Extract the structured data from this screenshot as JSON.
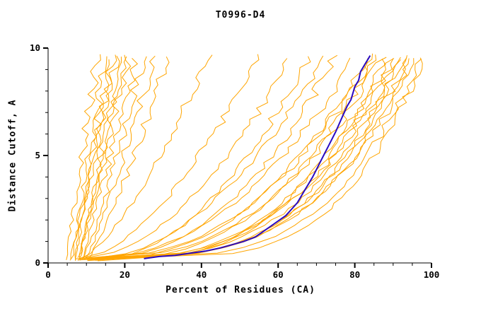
{
  "title": "T0996-D4",
  "colors": {
    "model": "#FFA500",
    "highlight": "#2A0AC0",
    "axis": "#000000",
    "background": "#FFFFFF"
  },
  "chart_data": {
    "type": "line",
    "title": "T0996-D4",
    "xlabel": "Percent of Residues (CA)",
    "ylabel": "Distance Cutoff, A",
    "xlim": [
      0,
      100
    ],
    "ylim": [
      0,
      10
    ],
    "grid": false,
    "legend": "none",
    "x_major_ticks": [
      0,
      20,
      40,
      60,
      80,
      100
    ],
    "x_minor_step": 5,
    "y_major_ticks": [
      0,
      5,
      10
    ],
    "y_minor_step": 1,
    "highlight_series": {
      "name": "highlighted-model",
      "color": "#2A0AC0",
      "points": [
        [
          25,
          0.2
        ],
        [
          29,
          0.3
        ],
        [
          33,
          0.35
        ],
        [
          37,
          0.45
        ],
        [
          41,
          0.55
        ],
        [
          45,
          0.7
        ],
        [
          48,
          0.85
        ],
        [
          51,
          1.0
        ],
        [
          54,
          1.2
        ],
        [
          56,
          1.45
        ],
        [
          58,
          1.7
        ],
        [
          60,
          1.95
        ],
        [
          62,
          2.2
        ],
        [
          63.5,
          2.5
        ],
        [
          65,
          2.8
        ],
        [
          66,
          3.1
        ],
        [
          67,
          3.4
        ],
        [
          68,
          3.7
        ],
        [
          69,
          4.0
        ],
        [
          70,
          4.35
        ],
        [
          71,
          4.7
        ],
        [
          72,
          5.05
        ],
        [
          73,
          5.4
        ],
        [
          74,
          5.75
        ],
        [
          75,
          6.1
        ],
        [
          76,
          6.5
        ],
        [
          77,
          6.9
        ],
        [
          78,
          7.3
        ],
        [
          79,
          7.6
        ],
        [
          79.5,
          7.9
        ],
        [
          80,
          8.2
        ],
        [
          81,
          8.5
        ],
        [
          81.5,
          8.9
        ],
        [
          82.5,
          9.2
        ],
        [
          83.5,
          9.5
        ],
        [
          84,
          9.65
        ]
      ]
    },
    "model_series": {
      "name": "server-models",
      "color": "#FFA500",
      "curves": [
        {
          "x0": 5,
          "x1": 13,
          "p": 1.1,
          "seed": 1
        },
        {
          "x0": 6,
          "x1": 15,
          "p": 1.0,
          "seed": 2
        },
        {
          "x0": 6,
          "x1": 16,
          "p": 0.9,
          "seed": 3
        },
        {
          "x0": 7,
          "x1": 17,
          "p": 1.0,
          "seed": 4
        },
        {
          "x0": 7,
          "x1": 18,
          "p": 1.1,
          "seed": 5
        },
        {
          "x0": 8,
          "x1": 19,
          "p": 0.95,
          "seed": 6
        },
        {
          "x0": 8,
          "x1": 20,
          "p": 1.0,
          "seed": 7
        },
        {
          "x0": 8,
          "x1": 21,
          "p": 0.9,
          "seed": 8
        },
        {
          "x0": 9,
          "x1": 23,
          "p": 1.0,
          "seed": 9
        },
        {
          "x0": 9,
          "x1": 25,
          "p": 0.85,
          "seed": 10
        },
        {
          "x0": 10,
          "x1": 28,
          "p": 0.9,
          "seed": 11
        },
        {
          "x0": 10,
          "x1": 31,
          "p": 0.8,
          "seed": 12
        },
        {
          "x0": 8,
          "x1": 42,
          "p": 0.7,
          "seed": 13
        },
        {
          "x0": 9,
          "x1": 55,
          "p": 0.6,
          "seed": 14
        },
        {
          "x0": 10,
          "x1": 63,
          "p": 0.55,
          "seed": 15
        },
        {
          "x0": 12,
          "x1": 68,
          "p": 0.5,
          "seed": 16
        },
        {
          "x0": 10,
          "x1": 72,
          "p": 0.5,
          "seed": 17
        },
        {
          "x0": 12,
          "x1": 75,
          "p": 0.45,
          "seed": 18
        },
        {
          "x0": 8,
          "x1": 80,
          "p": 0.45,
          "seed": 19
        },
        {
          "x0": 9,
          "x1": 83,
          "p": 0.4,
          "seed": 20
        },
        {
          "x0": 10,
          "x1": 85,
          "p": 0.42,
          "seed": 21
        },
        {
          "x0": 11,
          "x1": 86,
          "p": 0.38,
          "seed": 22
        },
        {
          "x0": 12,
          "x1": 87,
          "p": 0.4,
          "seed": 23
        },
        {
          "x0": 13,
          "x1": 88,
          "p": 0.35,
          "seed": 24
        },
        {
          "x0": 14,
          "x1": 89,
          "p": 0.37,
          "seed": 25
        },
        {
          "x0": 10,
          "x1": 90,
          "p": 0.33,
          "seed": 26
        },
        {
          "x0": 12,
          "x1": 91,
          "p": 0.35,
          "seed": 27
        },
        {
          "x0": 14,
          "x1": 92,
          "p": 0.3,
          "seed": 28
        },
        {
          "x0": 9,
          "x1": 93,
          "p": 0.32,
          "seed": 29
        },
        {
          "x0": 8,
          "x1": 94,
          "p": 0.3,
          "seed": 30
        },
        {
          "x0": 7,
          "x1": 95,
          "p": 0.28,
          "seed": 31
        },
        {
          "x0": 10,
          "x1": 96,
          "p": 0.3,
          "seed": 32
        },
        {
          "x0": 12,
          "x1": 97,
          "p": 0.27,
          "seed": 33
        },
        {
          "x0": 14,
          "x1": 98,
          "p": 0.25,
          "seed": 34
        }
      ]
    }
  }
}
